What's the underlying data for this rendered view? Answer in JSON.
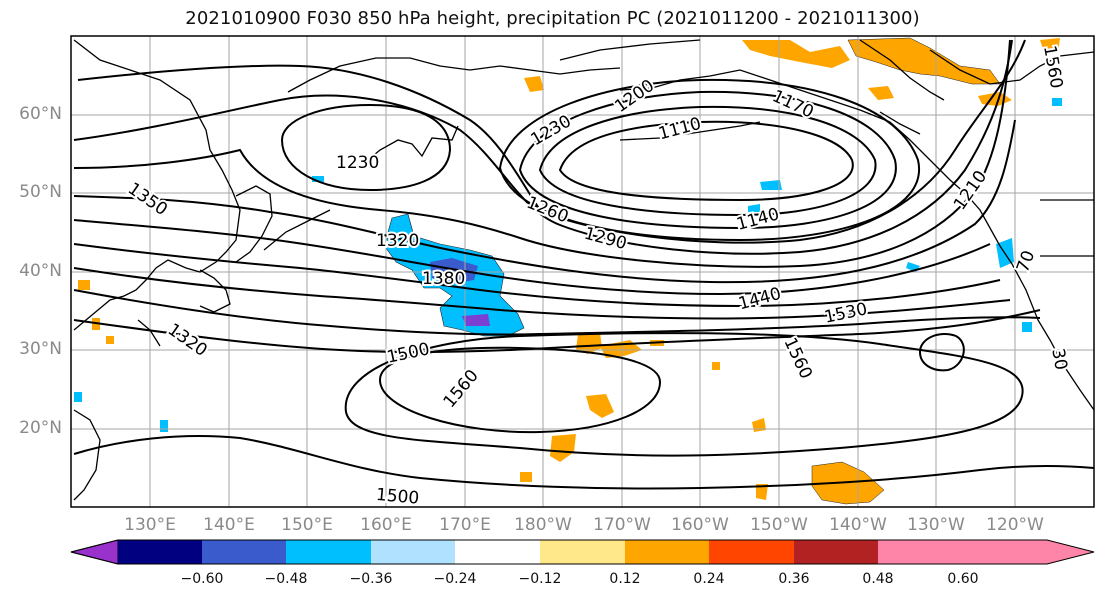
{
  "title": "2021010900 F030 850 hPa height, precipitation PC (2021011200 - 2021011300)",
  "lat_labels": [
    "60°N",
    "50°N",
    "40°N",
    "30°N",
    "20°N"
  ],
  "lon_labels": [
    "130°E",
    "140°E",
    "150°E",
    "160°E",
    "170°E",
    "180°W",
    "170°W",
    "160°W",
    "150°W",
    "140°W",
    "130°W",
    "120°W"
  ],
  "contour_labels": [
    "1230",
    "1200",
    "1170",
    "1110",
    "1230",
    "1350",
    "1260",
    "1290",
    "1140",
    "1210",
    "1320",
    "1380",
    "1440",
    "1530",
    "1560",
    "1500",
    "1560",
    "1500",
    "70",
    "1320",
    "1560",
    "30"
  ],
  "colorbar": {
    "colors": [
      "#9932cc",
      "#000080",
      "#3a5bcc",
      "#00bfff",
      "#b0e2ff",
      "#ffffff",
      "#ffe88a",
      "#ffa500",
      "#ff4500",
      "#b22222",
      "#ff85a8"
    ],
    "tick_labels": [
      "−0.60",
      "−0.48",
      "−0.36",
      "−0.24",
      "−0.12",
      "0.12",
      "0.24",
      "0.36",
      "0.48",
      "0.60"
    ]
  }
}
